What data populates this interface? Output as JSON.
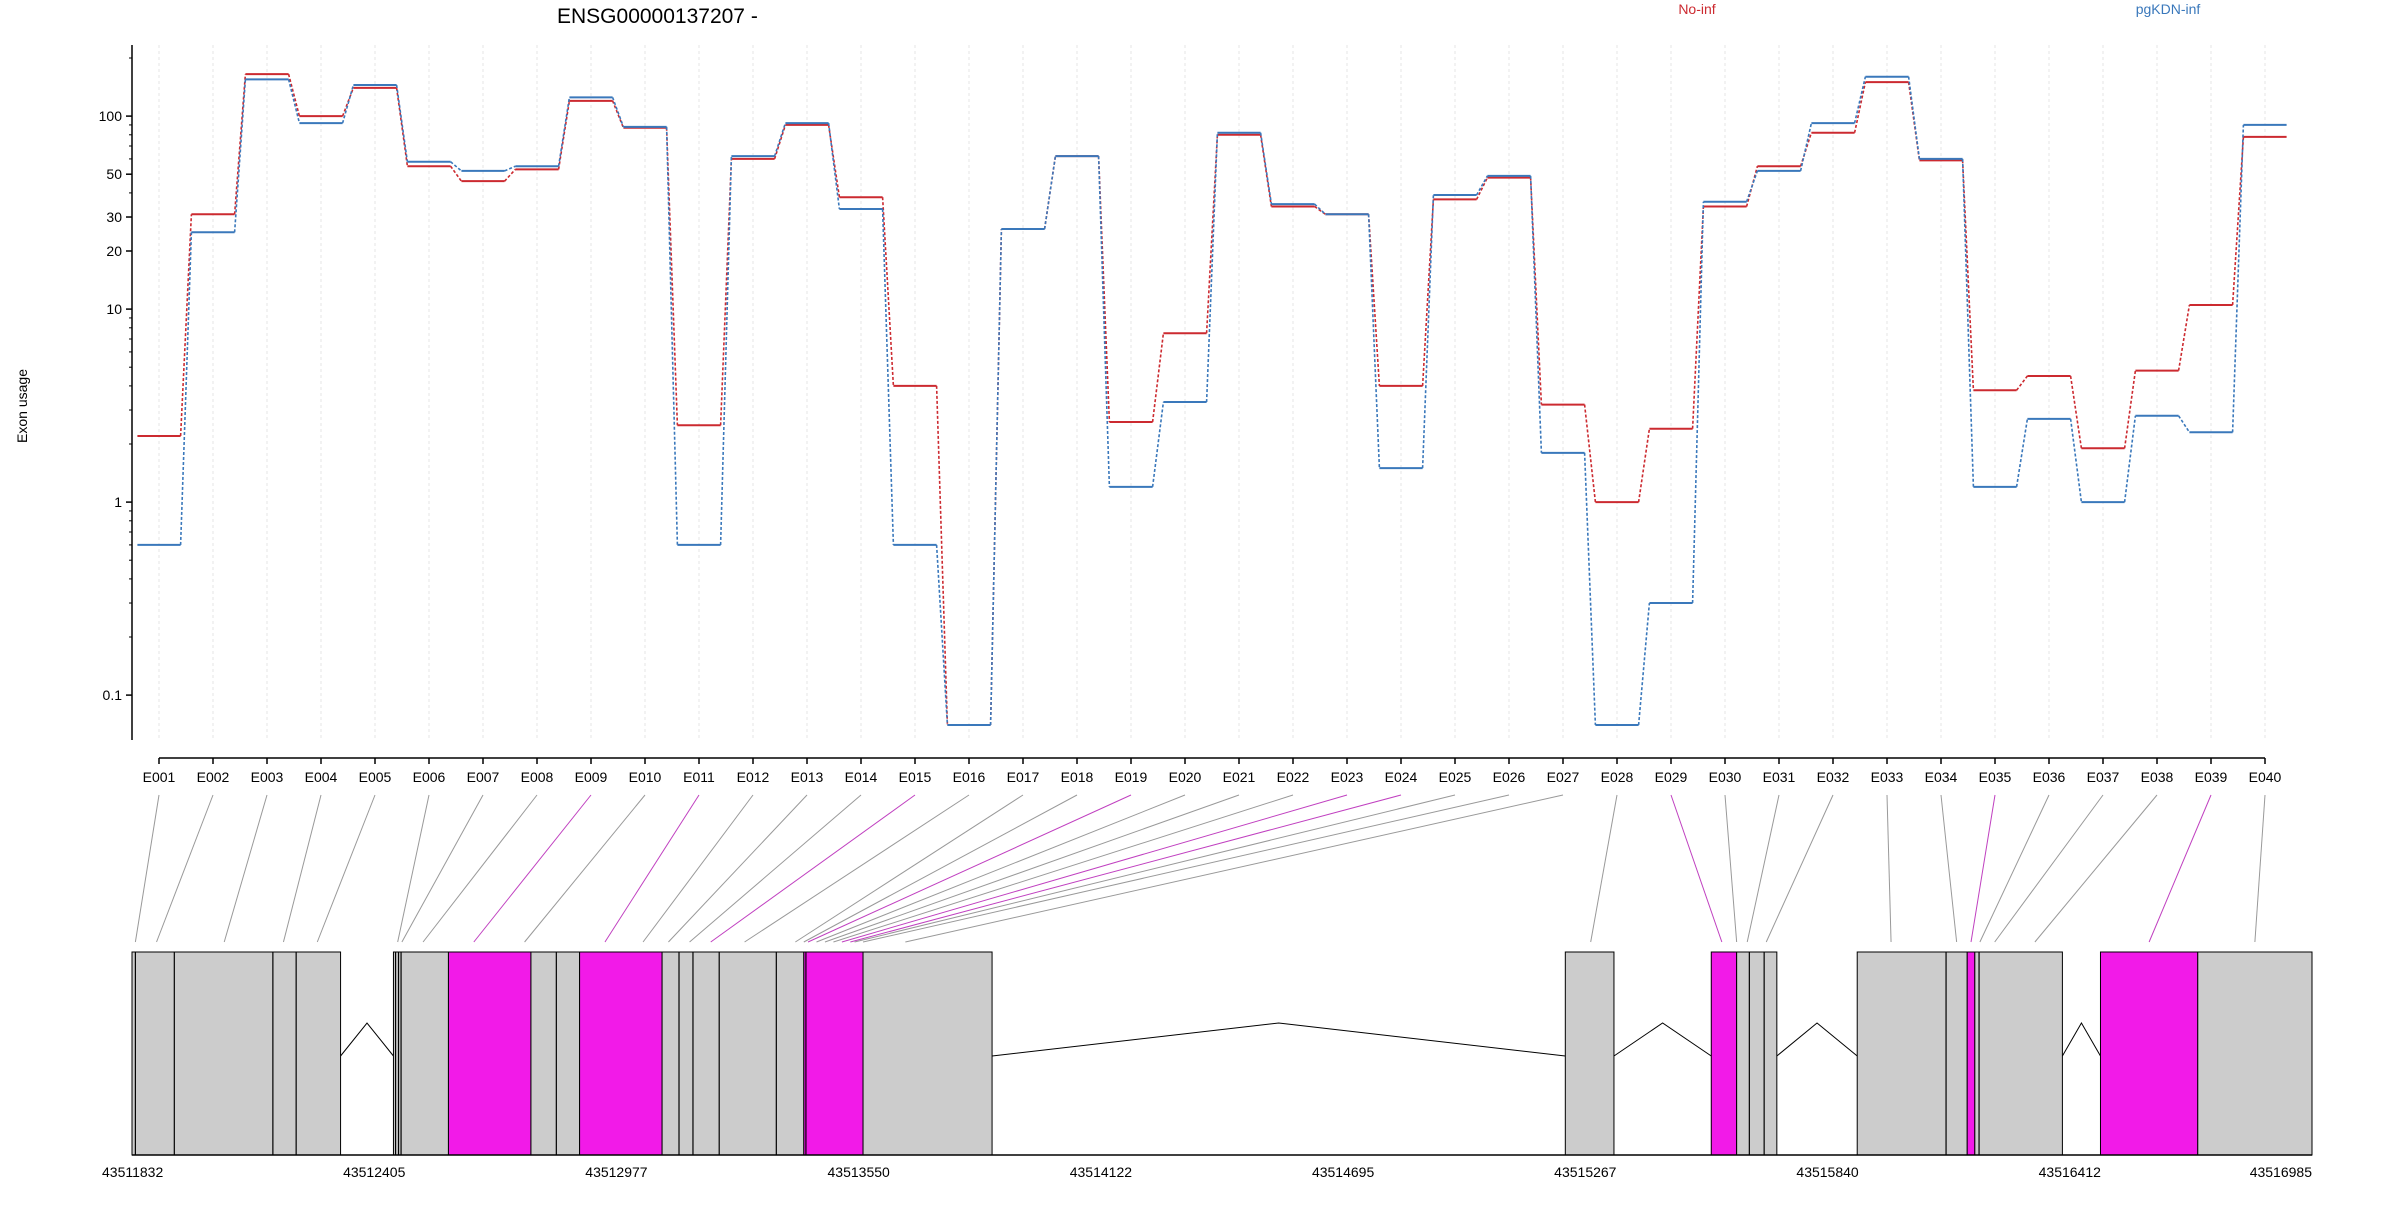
{
  "chart_data": [
    {
      "type": "line",
      "title": "ENSG00000137207 -",
      "xlabel": "",
      "ylabel": "Exon usage",
      "y_scale": "log",
      "ylim": [
        0.07,
        200
      ],
      "y_ticks": [
        0.1,
        1,
        10,
        20,
        30,
        50,
        100
      ],
      "y_tick_labels": [
        "0.1",
        "1",
        "10",
        "20",
        "30",
        "50",
        "100"
      ],
      "grid": "vertical, light",
      "legend": "top (inline labels)",
      "categories": [
        "E001",
        "E002",
        "E003",
        "E004",
        "E005",
        "E006",
        "E007",
        "E008",
        "E009",
        "E010",
        "E011",
        "E012",
        "E013",
        "E014",
        "E015",
        "E016",
        "E017",
        "E018",
        "E019",
        "E020",
        "E021",
        "E022",
        "E023",
        "E024",
        "E025",
        "E026",
        "E027",
        "E028",
        "E029",
        "E030",
        "E031",
        "E032",
        "E033",
        "E034",
        "E035",
        "E036",
        "E037",
        "E038",
        "E039",
        "E040"
      ],
      "series": [
        {
          "name": "No-inf",
          "color": "#cc2a30",
          "values": [
            2.2,
            31,
            165,
            100,
            140,
            55,
            46,
            53,
            120,
            87,
            2.5,
            60,
            90,
            38,
            4.0,
            0.07,
            26,
            62,
            2.6,
            7.5,
            80,
            34,
            31,
            4.0,
            37,
            48,
            3.2,
            1.0,
            2.4,
            34,
            55,
            82,
            150,
            59,
            3.8,
            4.5,
            1.9,
            4.8,
            10.5,
            78
          ]
        },
        {
          "name": "pgKDN-inf",
          "color": "#3a78bb",
          "values": [
            0.6,
            25,
            155,
            92,
            145,
            58,
            52,
            55,
            125,
            88,
            0.6,
            62,
            92,
            33,
            0.6,
            0.07,
            26,
            62,
            1.2,
            3.3,
            82,
            35,
            31,
            1.5,
            39,
            49,
            1.8,
            0.07,
            0.3,
            36,
            52,
            92,
            160,
            60,
            1.2,
            2.7,
            1.0,
            2.8,
            2.3,
            90
          ]
        }
      ]
    },
    {
      "type": "gene-model",
      "coordinate_ticks": [
        "43511832",
        "43512405",
        "43512977",
        "43513550",
        "43514122",
        "43514695",
        "43515267",
        "43515840",
        "43516412",
        "43516985"
      ],
      "coord_range": [
        43511832,
        43516985
      ],
      "colors": {
        "exon": "#cccccc",
        "highlight_exon": "#f21ae8",
        "line": "#999999",
        "highlight_line": "#c040c0"
      },
      "blocks": [
        {
          "start": 43511832,
          "end": 43512325,
          "highlight": false
        },
        {
          "start": 43512450,
          "end": 43512580,
          "highlight": false
        },
        {
          "start": 43512580,
          "end": 43512775,
          "highlight": true
        },
        {
          "start": 43512775,
          "end": 43512890,
          "highlight": false
        },
        {
          "start": 43512890,
          "end": 43513085,
          "highlight": true
        },
        {
          "start": 43513085,
          "end": 43513420,
          "highlight": false
        },
        {
          "start": 43513420,
          "end": 43513560,
          "highlight": true
        },
        {
          "start": 43513560,
          "end": 43513865,
          "highlight": false
        },
        {
          "start": 43515220,
          "end": 43515335,
          "highlight": false
        },
        {
          "start": 43515565,
          "end": 43515625,
          "highlight": true
        },
        {
          "start": 43515625,
          "end": 43515720,
          "highlight": false
        },
        {
          "start": 43515910,
          "end": 43516170,
          "highlight": false
        },
        {
          "start": 43516170,
          "end": 43516188,
          "highlight": true
        },
        {
          "start": 43516188,
          "end": 43516395,
          "highlight": false
        },
        {
          "start": 43516485,
          "end": 43516715,
          "highlight": true
        },
        {
          "start": 43516715,
          "end": 43516985,
          "highlight": false
        }
      ],
      "exon_dividers": [
        43511840,
        43511932,
        43512165,
        43512220,
        43512455,
        43512462,
        43512468,
        43512835,
        43513125,
        43513158,
        43513220,
        43513355,
        43513425,
        43515655,
        43515690,
        43516120,
        43516198
      ],
      "introns": [
        {
          "start": 43512325,
          "end": 43512450
        },
        {
          "start": 43513865,
          "end": 43515220
        },
        {
          "start": 43515335,
          "end": 43515565
        },
        {
          "start": 43515720,
          "end": 43515910
        },
        {
          "start": 43516395,
          "end": 43516485
        }
      ],
      "exon_links": [
        {
          "exon": "E001",
          "pos": 43511840,
          "highlight": false
        },
        {
          "exon": "E002",
          "pos": 43511890,
          "highlight": false
        },
        {
          "exon": "E003",
          "pos": 43512050,
          "highlight": false
        },
        {
          "exon": "E004",
          "pos": 43512190,
          "highlight": false
        },
        {
          "exon": "E005",
          "pos": 43512270,
          "highlight": false
        },
        {
          "exon": "E006",
          "pos": 43512460,
          "highlight": false
        },
        {
          "exon": "E007",
          "pos": 43512470,
          "highlight": false
        },
        {
          "exon": "E008",
          "pos": 43512520,
          "highlight": false
        },
        {
          "exon": "E009",
          "pos": 43512640,
          "highlight": true
        },
        {
          "exon": "E010",
          "pos": 43512760,
          "highlight": false
        },
        {
          "exon": "E011",
          "pos": 43512950,
          "highlight": true
        },
        {
          "exon": "E012",
          "pos": 43513040,
          "highlight": false
        },
        {
          "exon": "E013",
          "pos": 43513100,
          "highlight": false
        },
        {
          "exon": "E014",
          "pos": 43513150,
          "highlight": false
        },
        {
          "exon": "E015",
          "pos": 43513200,
          "highlight": true
        },
        {
          "exon": "E016",
          "pos": 43513280,
          "highlight": false
        },
        {
          "exon": "E017",
          "pos": 43513400,
          "highlight": false
        },
        {
          "exon": "E018",
          "pos": 43513420,
          "highlight": false
        },
        {
          "exon": "E019",
          "pos": 43513430,
          "highlight": true
        },
        {
          "exon": "E020",
          "pos": 43513450,
          "highlight": false
        },
        {
          "exon": "E021",
          "pos": 43513470,
          "highlight": false
        },
        {
          "exon": "E022",
          "pos": 43513490,
          "highlight": false
        },
        {
          "exon": "E023",
          "pos": 43513510,
          "highlight": true
        },
        {
          "exon": "E024",
          "pos": 43513530,
          "highlight": true
        },
        {
          "exon": "E025",
          "pos": 43513540,
          "highlight": false
        },
        {
          "exon": "E026",
          "pos": 43513560,
          "highlight": false
        },
        {
          "exon": "E027",
          "pos": 43513660,
          "highlight": false
        },
        {
          "exon": "E028",
          "pos": 43515280,
          "highlight": false
        },
        {
          "exon": "E029",
          "pos": 43515590,
          "highlight": true
        },
        {
          "exon": "E030",
          "pos": 43515625,
          "highlight": false
        },
        {
          "exon": "E031",
          "pos": 43515650,
          "highlight": false
        },
        {
          "exon": "E032",
          "pos": 43515695,
          "highlight": false
        },
        {
          "exon": "E033",
          "pos": 43515990,
          "highlight": false
        },
        {
          "exon": "E034",
          "pos": 43516145,
          "highlight": false
        },
        {
          "exon": "E035",
          "pos": 43516179,
          "highlight": true
        },
        {
          "exon": "E036",
          "pos": 43516200,
          "highlight": false
        },
        {
          "exon": "E037",
          "pos": 43516235,
          "highlight": false
        },
        {
          "exon": "E038",
          "pos": 43516330,
          "highlight": false
        },
        {
          "exon": "E039",
          "pos": 43516600,
          "highlight": true
        },
        {
          "exon": "E040",
          "pos": 43516850,
          "highlight": false
        }
      ]
    }
  ]
}
